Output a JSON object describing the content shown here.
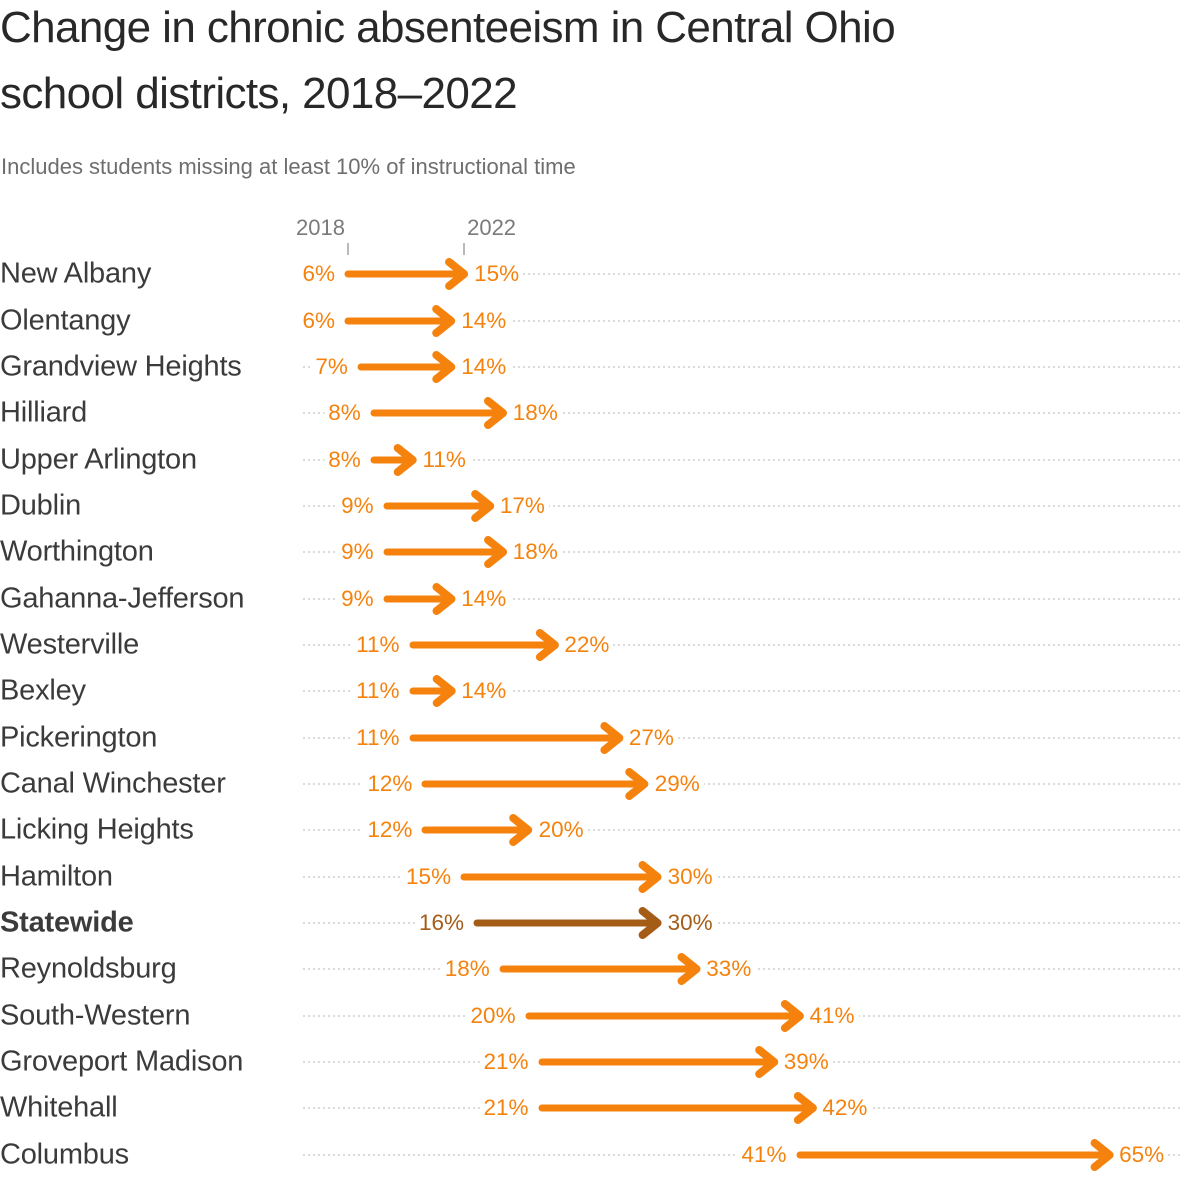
{
  "header": {
    "title_lines": [
      "Change in chronic absenteeism in Central Ohio",
      "school districts, 2018–2022"
    ],
    "subtitle": "Includes students missing at least 10% of instructional time"
  },
  "colors": {
    "background": "#ffffff",
    "arrow": "#f5820d",
    "emphasis": "#a55c17",
    "district_name": "#3b3b3b",
    "title": "#282828",
    "subtitle": "#6e6e6e",
    "axis_label": "#7a7a7a",
    "tick": "#b9b9b9",
    "dots": "#dbdbdb"
  },
  "chart_data": {
    "type": "arrow",
    "unit": "%",
    "columns": [
      "2018",
      "2022"
    ],
    "axis": {
      "tick_values": [
        6,
        15
      ]
    },
    "rows": [
      {
        "name": "New Albany",
        "start": 6,
        "end": 15
      },
      {
        "name": "Olentangy",
        "start": 6,
        "end": 14
      },
      {
        "name": "Grandview Heights",
        "start": 7,
        "end": 14
      },
      {
        "name": "Hilliard",
        "start": 8,
        "end": 18
      },
      {
        "name": "Upper Arlington",
        "start": 8,
        "end": 11
      },
      {
        "name": "Dublin",
        "start": 9,
        "end": 17
      },
      {
        "name": "Worthington",
        "start": 9,
        "end": 18
      },
      {
        "name": "Gahanna-Jefferson",
        "start": 9,
        "end": 14
      },
      {
        "name": "Westerville",
        "start": 11,
        "end": 22
      },
      {
        "name": "Bexley",
        "start": 11,
        "end": 14
      },
      {
        "name": "Pickerington",
        "start": 11,
        "end": 27
      },
      {
        "name": "Canal Winchester",
        "start": 12,
        "end": 29
      },
      {
        "name": "Licking Heights",
        "start": 12,
        "end": 20
      },
      {
        "name": "Hamilton",
        "start": 15,
        "end": 30
      },
      {
        "name": "Statewide",
        "start": 16,
        "end": 30,
        "emphasis": true
      },
      {
        "name": "Reynoldsburg",
        "start": 18,
        "end": 33
      },
      {
        "name": "South-Western",
        "start": 20,
        "end": 41
      },
      {
        "name": "Groveport Madison",
        "start": 21,
        "end": 39
      },
      {
        "name": "Whitehall",
        "start": 21,
        "end": 42
      },
      {
        "name": "Columbus",
        "start": 41,
        "end": 65
      }
    ]
  }
}
